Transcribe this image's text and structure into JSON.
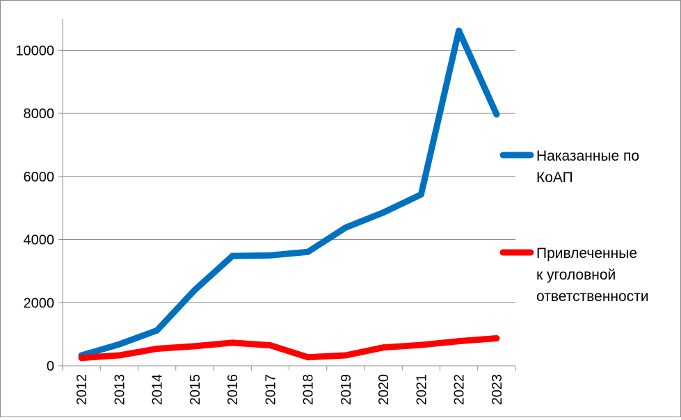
{
  "chart_data": {
    "type": "line",
    "categories": [
      "2012",
      "2013",
      "2014",
      "2015",
      "2016",
      "2017",
      "2018",
      "2019",
      "2020",
      "2021",
      "2022",
      "2023"
    ],
    "series": [
      {
        "name": "Наказанные по КоАП",
        "name_lines": [
          "Наказанные по",
          "КоАП"
        ],
        "color": "#0070C0",
        "values": [
          330,
          680,
          1120,
          2400,
          3480,
          3500,
          3610,
          4380,
          4860,
          5430,
          10620,
          7970
        ]
      },
      {
        "name": "Привлеченные к уголовной ответственности",
        "name_lines": [
          "Привлеченные",
          "к уголовной",
          "ответственности"
        ],
        "color": "#FF0000",
        "values": [
          250,
          330,
          540,
          620,
          730,
          650,
          270,
          330,
          580,
          660,
          780,
          870
        ]
      }
    ],
    "y_ticks": [
      0,
      2000,
      4000,
      6000,
      8000,
      10000
    ],
    "ylim": [
      0,
      11000
    ],
    "grid": true,
    "legend_position": "right"
  }
}
